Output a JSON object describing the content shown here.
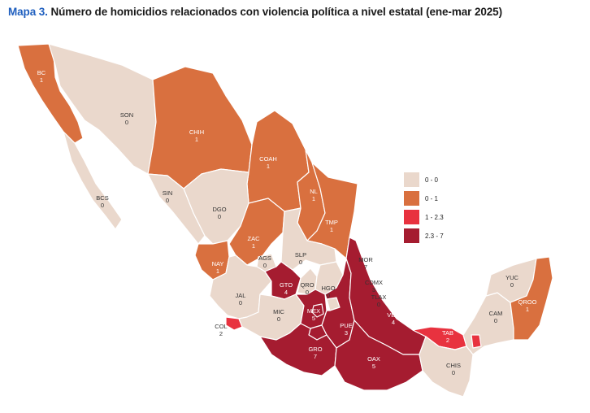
{
  "title": {
    "tag": "Mapa 3.",
    "text": "Número de homicidios relacionados con violencia política a nivel estatal (ene-mar 2025)"
  },
  "colors": {
    "c0": "#ead8cc",
    "c1": "#d9703f",
    "c2": "#e8323f",
    "c3": "#a51c30"
  },
  "legend": [
    {
      "label": "0 - 0",
      "color_key": "c0"
    },
    {
      "label": "0 - 1",
      "color_key": "c1"
    },
    {
      "label": "1 - 2.3",
      "color_key": "c2"
    },
    {
      "label": "2.3 - 7",
      "color_key": "c3"
    }
  ],
  "states": [
    {
      "id": "bc",
      "abbr": "BC",
      "value": "1"
    },
    {
      "id": "bcs",
      "abbr": "BCS",
      "value": "0"
    },
    {
      "id": "son",
      "abbr": "SON",
      "value": "0"
    },
    {
      "id": "chih",
      "abbr": "CHIH",
      "value": "1"
    },
    {
      "id": "coah",
      "abbr": "COAH",
      "value": "1"
    },
    {
      "id": "sin",
      "abbr": "SIN",
      "value": "0"
    },
    {
      "id": "dgo",
      "abbr": "DGO",
      "value": "0"
    },
    {
      "id": "nl",
      "abbr": "NL",
      "value": "1"
    },
    {
      "id": "tmp",
      "abbr": "TMP",
      "value": "1"
    },
    {
      "id": "zac",
      "abbr": "ZAC",
      "value": "1"
    },
    {
      "id": "nay",
      "abbr": "NAY",
      "value": "1"
    },
    {
      "id": "ags",
      "abbr": "AGS",
      "value": "0"
    },
    {
      "id": "slp",
      "abbr": "SLP",
      "value": "0"
    },
    {
      "id": "jal",
      "abbr": "JAL",
      "value": "0"
    },
    {
      "id": "gto",
      "abbr": "GTO",
      "value": "4"
    },
    {
      "id": "qro",
      "abbr": "QRO",
      "value": "0"
    },
    {
      "id": "hgo",
      "abbr": "HGO",
      "value": "0"
    },
    {
      "id": "col",
      "abbr": "COL",
      "value": "2"
    },
    {
      "id": "mic",
      "abbr": "MIC",
      "value": "0"
    },
    {
      "id": "mex",
      "abbr": "MEX",
      "value": "5"
    },
    {
      "id": "mor",
      "abbr": "MOR",
      "value": "7"
    },
    {
      "id": "cdmx",
      "abbr": "CDMX",
      "value": "3"
    },
    {
      "id": "tlax",
      "abbr": "TLAX",
      "value": "0"
    },
    {
      "id": "pue",
      "abbr": "PUE",
      "value": "3"
    },
    {
      "id": "ver",
      "abbr": "VER",
      "value": "4"
    },
    {
      "id": "gro",
      "abbr": "GRO",
      "value": "7"
    },
    {
      "id": "oax",
      "abbr": "OAX",
      "value": "5"
    },
    {
      "id": "tab",
      "abbr": "TAB",
      "value": "2"
    },
    {
      "id": "chis",
      "abbr": "CHIS",
      "value": "0"
    },
    {
      "id": "camp",
      "abbr": "CAM",
      "value": "0"
    },
    {
      "id": "yuc",
      "abbr": "YUC",
      "value": "0"
    },
    {
      "id": "qroo",
      "abbr": "QROO",
      "value": "1"
    }
  ]
}
